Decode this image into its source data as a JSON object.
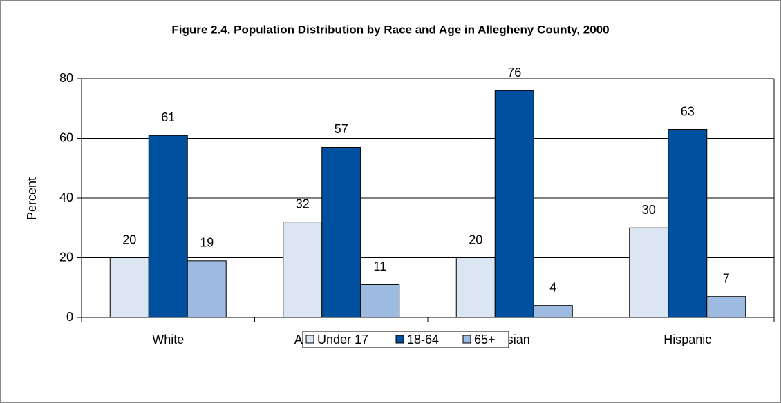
{
  "chart_data": {
    "type": "bar",
    "title": "Figure 2.4. Population Distribution by Race and Age in Allegheny County, 2000",
    "y_label": "Percent",
    "categories": [
      "White",
      "African American",
      "Asian",
      "Hispanic"
    ],
    "series": [
      {
        "name": "Under 17",
        "color": "#dce6f2",
        "values": [
          20,
          32,
          20,
          30
        ]
      },
      {
        "name": "18-64",
        "color": "#0050a0",
        "values": [
          61,
          57,
          76,
          63
        ]
      },
      {
        "name": "65+",
        "color": "#9dbbe0",
        "values": [
          19,
          11,
          4,
          7
        ]
      }
    ],
    "ylim": [
      0,
      80
    ],
    "yticks": [
      0,
      20,
      40,
      60,
      80
    ],
    "grid": true,
    "legend": "bottom"
  }
}
